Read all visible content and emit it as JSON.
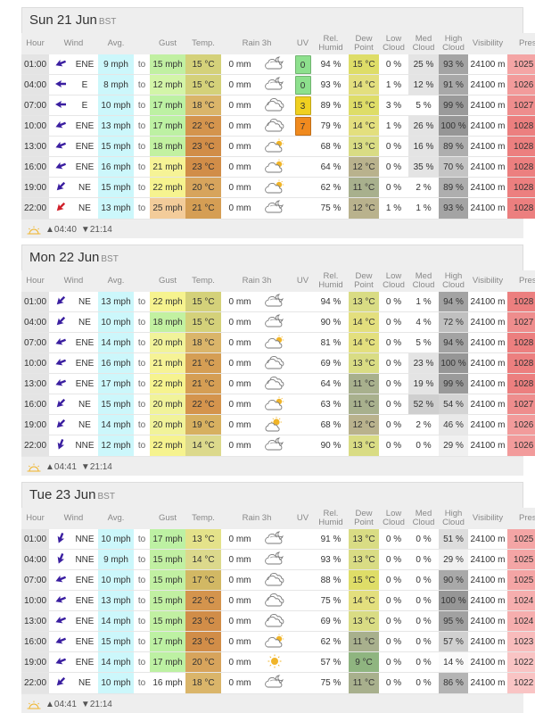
{
  "columns": {
    "hour": "Hour",
    "wind": "Wind",
    "avg": "Avg.",
    "gust": "Gust",
    "temp": "Temp.",
    "rain": "Rain 3h",
    "uv": "UV",
    "rel": [
      "Rel.",
      "Humid"
    ],
    "dew": [
      "Dew",
      "Point"
    ],
    "low": [
      "Low",
      "Cloud"
    ],
    "med": [
      "Med",
      "Cloud"
    ],
    "high": [
      "High",
      "Cloud"
    ],
    "vis": "Visibility",
    "press": "Press."
  },
  "to_label": "to",
  "colors": {
    "avg": "#ccf7fb",
    "gust": {
      "12 mph": "#d3f5a8",
      "15 mph": "#c1f0a2",
      "17 mph": "#bdf1a3",
      "18 mph": "#c2f1a1",
      "20 mph": "#f1f39a",
      "21 mph": "#f6f396",
      "22 mph": "#f6f38f",
      "25 mph": "#f3cc9a"
    },
    "temp": {
      "13 °C": "#e4e28a",
      "14 °C": "#dcd98c",
      "15 °C": "#d4d17a",
      "17 °C": "#d2b864",
      "18 °C": "#dab56a",
      "19 °C": "#d7b060",
      "20 °C": "#d7a45c",
      "21 °C": "#d59e54",
      "22 °C": "#d4944d",
      "23 °C": "#d18d48"
    },
    "dew": {
      "9 °C": "#8fb580",
      "11 °C": "#a8b08d",
      "12 °C": "#b9b28d",
      "13 °C": "#d9dc84",
      "14 °C": "#e3df7e",
      "15 °C": "#dedd68"
    },
    "med_shade": "#e4e4e4",
    "high": {
      "14 %": "#fafafa",
      "29 %": "#f0f0f0",
      "46 %": "#e8e8e8",
      "51 %": "#dddddd",
      "54 %": "#d4d4d4",
      "57 %": "#d0d0d0",
      "70 %": "#c4c4c4",
      "72 %": "#c0c0c0",
      "86 %": "#b4b4b4",
      "89 %": "#aeaeae",
      "90 %": "#a9a9a9",
      "91 %": "#a8a8a8",
      "93 %": "#a4a4a4",
      "94 %": "#a3a3a3",
      "95 %": "#a1a1a1",
      "99 %": "#9a9a9a",
      "100 %": "#969696"
    },
    "press": {
      "1022 mb": "#f9c4c4",
      "1023 mb": "#f8bcbc",
      "1024 mb": "#f6aeae",
      "1025 mb": "#f4a5a5",
      "1026 mb": "#f29b9b",
      "1027 mb": "#ee8d8d",
      "1028 mb": "#ec7f7f"
    },
    "uv": {
      "0": "#8de08d",
      "3": "#f0d020",
      "7": "#f08a1e"
    },
    "arrow_default": "#3a1ea0",
    "arrow_strong": "#d0202a",
    "sun": "#f0b428"
  },
  "days": [
    {
      "title": "Sun 21 Jun",
      "tz": "BST",
      "sunrise": "▲04:40",
      "sunset": "▼21:14",
      "rows": [
        {
          "hour": "01:00",
          "dir": "ENE",
          "deg": 68,
          "avg": "9 mph",
          "gust": "15 mph",
          "temp": "15 °C",
          "rain": "0 mm",
          "icon": "cloud-moon-icon",
          "uv": "0",
          "rel": "94 %",
          "dew": "15 °C",
          "low": "0 %",
          "med": "25 %",
          "high": "93 %",
          "vis": "24100 m",
          "press": "1025 mb"
        },
        {
          "hour": "04:00",
          "dir": "E",
          "deg": 90,
          "avg": "8 mph",
          "gust": "12 mph",
          "temp": "15 °C",
          "rain": "0 mm",
          "icon": "cloud-moon-icon",
          "uv": "0",
          "rel": "93 %",
          "dew": "14 °C",
          "low": "1 %",
          "med": "12 %",
          "high": "91 %",
          "vis": "24100 m",
          "press": "1026 mb"
        },
        {
          "hour": "07:00",
          "dir": "E",
          "deg": 90,
          "avg": "10 mph",
          "gust": "17 mph",
          "temp": "18 °C",
          "rain": "0 mm",
          "icon": "cloud-icon",
          "uv": "3",
          "rel": "89 %",
          "dew": "15 °C",
          "low": "3 %",
          "med": "5 %",
          "high": "99 %",
          "vis": "24100 m",
          "press": "1027 mb"
        },
        {
          "hour": "10:00",
          "dir": "ENE",
          "deg": 68,
          "avg": "13 mph",
          "gust": "17 mph",
          "temp": "22 °C",
          "rain": "0 mm",
          "icon": "cloud-icon",
          "uv": "7",
          "rel": "79 %",
          "dew": "14 °C",
          "low": "1 %",
          "med": "26 %",
          "high": "100 %",
          "vis": "24100 m",
          "press": "1028 mb"
        },
        {
          "hour": "13:00",
          "dir": "ENE",
          "deg": 68,
          "avg": "15 mph",
          "gust": "18 mph",
          "temp": "23 °C",
          "rain": "0 mm",
          "icon": "cloud-sun-icon",
          "uv": "",
          "rel": "68 %",
          "dew": "13 °C",
          "low": "0 %",
          "med": "16 %",
          "high": "89 %",
          "vis": "24100 m",
          "press": "1028 mb"
        },
        {
          "hour": "16:00",
          "dir": "ENE",
          "deg": 68,
          "avg": "16 mph",
          "gust": "21 mph",
          "temp": "23 °C",
          "rain": "0 mm",
          "icon": "cloud-sun-icon",
          "uv": "",
          "rel": "64 %",
          "dew": "12 °C",
          "low": "0 %",
          "med": "35 %",
          "high": "70 %",
          "vis": "24100 m",
          "press": "1028 mb"
        },
        {
          "hour": "19:00",
          "dir": "NE",
          "deg": 45,
          "avg": "15 mph",
          "gust": "22 mph",
          "temp": "20 °C",
          "rain": "0 mm",
          "icon": "cloud-sun-icon",
          "uv": "",
          "rel": "62 %",
          "dew": "11 °C",
          "low": "0 %",
          "med": "2 %",
          "high": "89 %",
          "vis": "24100 m",
          "press": "1028 mb"
        },
        {
          "hour": "22:00",
          "dir": "NE",
          "deg": 45,
          "avg": "13 mph",
          "gust": "25 mph",
          "temp": "21 °C",
          "rain": "0 mm",
          "icon": "cloud-moon-icon",
          "uv": "",
          "rel": "75 %",
          "dew": "12 °C",
          "low": "1 %",
          "med": "1 %",
          "high": "93 %",
          "vis": "24100 m",
          "press": "1028 mb",
          "strong": true
        }
      ]
    },
    {
      "title": "Mon 22 Jun",
      "tz": "BST",
      "sunrise": "▲04:41",
      "sunset": "▼21:14",
      "rows": [
        {
          "hour": "01:00",
          "dir": "NE",
          "deg": 45,
          "avg": "13 mph",
          "gust": "22 mph",
          "temp": "15 °C",
          "rain": "0 mm",
          "icon": "cloud-moon-icon",
          "uv": "",
          "rel": "94 %",
          "dew": "13 °C",
          "low": "0 %",
          "med": "1 %",
          "high": "94 %",
          "vis": "24100 m",
          "press": "1028 mb"
        },
        {
          "hour": "04:00",
          "dir": "NE",
          "deg": 45,
          "avg": "10 mph",
          "gust": "18 mph",
          "temp": "15 °C",
          "rain": "0 mm",
          "icon": "cloud-moon-icon",
          "uv": "",
          "rel": "90 %",
          "dew": "14 °C",
          "low": "0 %",
          "med": "4 %",
          "high": "72 %",
          "vis": "24100 m",
          "press": "1027 mb"
        },
        {
          "hour": "07:00",
          "dir": "ENE",
          "deg": 68,
          "avg": "14 mph",
          "gust": "20 mph",
          "temp": "18 °C",
          "rain": "0 mm",
          "icon": "cloud-sun-icon",
          "uv": "",
          "rel": "81 %",
          "dew": "14 °C",
          "low": "0 %",
          "med": "5 %",
          "high": "94 %",
          "vis": "24100 m",
          "press": "1028 mb"
        },
        {
          "hour": "10:00",
          "dir": "ENE",
          "deg": 68,
          "avg": "16 mph",
          "gust": "21 mph",
          "temp": "21 °C",
          "rain": "0 mm",
          "icon": "cloud-icon",
          "uv": "",
          "rel": "69 %",
          "dew": "13 °C",
          "low": "0 %",
          "med": "23 %",
          "high": "100 %",
          "vis": "24100 m",
          "press": "1028 mb"
        },
        {
          "hour": "13:00",
          "dir": "ENE",
          "deg": 68,
          "avg": "17 mph",
          "gust": "22 mph",
          "temp": "21 °C",
          "rain": "0 mm",
          "icon": "cloud-icon",
          "uv": "",
          "rel": "64 %",
          "dew": "11 °C",
          "low": "0 %",
          "med": "19 %",
          "high": "99 %",
          "vis": "24100 m",
          "press": "1028 mb"
        },
        {
          "hour": "16:00",
          "dir": "NE",
          "deg": 45,
          "avg": "15 mph",
          "gust": "20 mph",
          "temp": "22 °C",
          "rain": "0 mm",
          "icon": "cloud-sun-icon",
          "uv": "",
          "rel": "63 %",
          "dew": "11 °C",
          "low": "0 %",
          "med": "52 %",
          "high": "54 %",
          "vis": "24100 m",
          "press": "1027 mb"
        },
        {
          "hour": "19:00",
          "dir": "NE",
          "deg": 45,
          "avg": "14 mph",
          "gust": "20 mph",
          "temp": "19 °C",
          "rain": "0 mm",
          "icon": "sun-cloud-icon",
          "uv": "",
          "rel": "68 %",
          "dew": "12 °C",
          "low": "0 %",
          "med": "2 %",
          "high": "46 %",
          "vis": "24100 m",
          "press": "1026 mb"
        },
        {
          "hour": "22:00",
          "dir": "NNE",
          "deg": 22,
          "avg": "12 mph",
          "gust": "22 mph",
          "temp": "14 °C",
          "rain": "0 mm",
          "icon": "cloud-moon-icon",
          "uv": "",
          "rel": "90 %",
          "dew": "13 °C",
          "low": "0 %",
          "med": "0 %",
          "high": "29 %",
          "vis": "24100 m",
          "press": "1026 mb"
        }
      ]
    },
    {
      "title": "Tue 23 Jun",
      "tz": "BST",
      "sunrise": "▲04:41",
      "sunset": "▼21:14",
      "rows": [
        {
          "hour": "01:00",
          "dir": "NNE",
          "deg": 22,
          "avg": "10 mph",
          "gust": "17 mph",
          "temp": "13 °C",
          "rain": "0 mm",
          "icon": "cloud-moon-icon",
          "uv": "",
          "rel": "91 %",
          "dew": "13 °C",
          "low": "0 %",
          "med": "0 %",
          "high": "51 %",
          "vis": "24100 m",
          "press": "1025 mb"
        },
        {
          "hour": "04:00",
          "dir": "NNE",
          "deg": 22,
          "avg": "9 mph",
          "gust": "15 mph",
          "temp": "14 °C",
          "rain": "0 mm",
          "icon": "cloud-moon-icon",
          "uv": "",
          "rel": "93 %",
          "dew": "13 °C",
          "low": "0 %",
          "med": "0 %",
          "high": "29 %",
          "vis": "24100 m",
          "press": "1025 mb"
        },
        {
          "hour": "07:00",
          "dir": "ENE",
          "deg": 68,
          "avg": "10 mph",
          "gust": "15 mph",
          "temp": "17 °C",
          "rain": "0 mm",
          "icon": "cloud-icon",
          "uv": "",
          "rel": "88 %",
          "dew": "15 °C",
          "low": "0 %",
          "med": "0 %",
          "high": "90 %",
          "vis": "24100 m",
          "press": "1025 mb"
        },
        {
          "hour": "10:00",
          "dir": "ENE",
          "deg": 68,
          "avg": "13 mph",
          "gust": "15 mph",
          "temp": "22 °C",
          "rain": "0 mm",
          "icon": "cloud-icon",
          "uv": "",
          "rel": "75 %",
          "dew": "14 °C",
          "low": "0 %",
          "med": "0 %",
          "high": "100 %",
          "vis": "24100 m",
          "press": "1024 mb"
        },
        {
          "hour": "13:00",
          "dir": "ENE",
          "deg": 68,
          "avg": "14 mph",
          "gust": "15 mph",
          "temp": "23 °C",
          "rain": "0 mm",
          "icon": "cloud-icon",
          "uv": "",
          "rel": "69 %",
          "dew": "13 °C",
          "low": "0 %",
          "med": "0 %",
          "high": "95 %",
          "vis": "24100 m",
          "press": "1024 mb"
        },
        {
          "hour": "16:00",
          "dir": "ENE",
          "deg": 68,
          "avg": "15 mph",
          "gust": "17 mph",
          "temp": "23 °C",
          "rain": "0 mm",
          "icon": "cloud-sun-icon",
          "uv": "",
          "rel": "62 %",
          "dew": "11 °C",
          "low": "0 %",
          "med": "0 %",
          "high": "57 %",
          "vis": "24100 m",
          "press": "1023 mb"
        },
        {
          "hour": "19:00",
          "dir": "ENE",
          "deg": 68,
          "avg": "14 mph",
          "gust": "17 mph",
          "temp": "20 °C",
          "rain": "0 mm",
          "icon": "sun-icon",
          "uv": "",
          "rel": "57 %",
          "dew": "9 °C",
          "low": "0 %",
          "med": "0 %",
          "high": "14 %",
          "vis": "24100 m",
          "press": "1022 mb"
        },
        {
          "hour": "22:00",
          "dir": "NE",
          "deg": 45,
          "avg": "10 mph",
          "gust": "16 mph",
          "temp": "18 °C",
          "rain": "0 mm",
          "icon": "cloud-moon-icon",
          "uv": "",
          "rel": "75 %",
          "dew": "11 °C",
          "low": "0 %",
          "med": "0 %",
          "high": "86 %",
          "vis": "24100 m",
          "press": "1022 mb"
        }
      ]
    }
  ]
}
